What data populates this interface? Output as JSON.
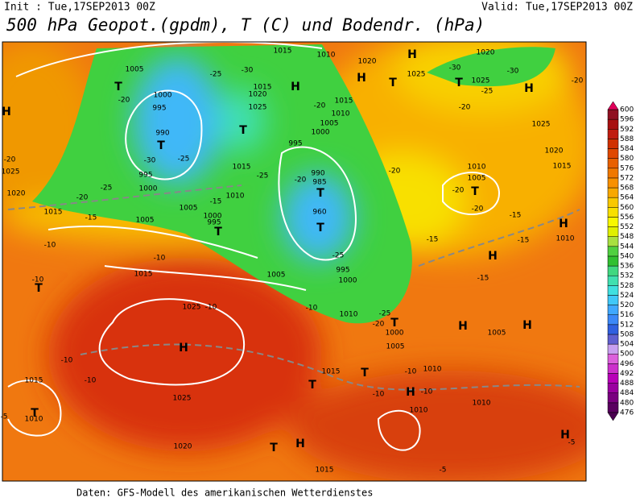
{
  "header": {
    "init": "Init : Tue,17SEP2013 00Z",
    "valid": "Valid: Tue,17SEP2013 00Z",
    "title": "500 hPa Geopot.(gpdm), T (C) und Bodendr. (hPa)"
  },
  "footer": "Daten: GFS-Modell des amerikanischen Wetterdienstes",
  "colorbar": {
    "levels": [
      476,
      480,
      484,
      488,
      492,
      496,
      500,
      504,
      508,
      512,
      516,
      520,
      524,
      528,
      532,
      536,
      540,
      544,
      548,
      552,
      556,
      560,
      564,
      568,
      572,
      576,
      580,
      584,
      588,
      592,
      596,
      600
    ],
    "colors": [
      "#5a0060",
      "#7a0080",
      "#9a00a0",
      "#b800b8",
      "#cc30cc",
      "#dc60dc",
      "#c8a0f0",
      "#6060d0",
      "#3060e0",
      "#3c88f8",
      "#40a8ff",
      "#40c8f8",
      "#40e0e0",
      "#40e0b0",
      "#40d880",
      "#30c030",
      "#50d040",
      "#a8e040",
      "#e0f000",
      "#f8f800",
      "#f8e000",
      "#f8c800",
      "#f8a800",
      "#f89000",
      "#f07800",
      "#e86000",
      "#e04800",
      "#d03000",
      "#c01c10",
      "#a81010",
      "#901020"
    ]
  },
  "map": {
    "labels": [
      "H",
      "H",
      "H",
      "H",
      "H",
      "H",
      "H",
      "H",
      "H",
      "H",
      "H",
      "H",
      "H",
      "T",
      "T",
      "T",
      "T",
      "T",
      "T",
      "T",
      "T",
      "T",
      "T",
      "T",
      "T",
      "T",
      "T",
      "T",
      "1000",
      "995",
      "990",
      "995",
      "1000",
      "1005",
      "1015",
      "1010",
      "1020",
      "1025",
      "1025",
      "1020",
      "1015",
      "1010",
      "1005",
      "1000",
      "995",
      "990",
      "985",
      "960",
      "995",
      "1000",
      "1005",
      "1010",
      "1000",
      "1005",
      "1010",
      "1015",
      "1025",
      "1025",
      "1020",
      "1015",
      "1005",
      "1005",
      "1000",
      "995",
      "1010",
      "1015",
      "1025",
      "1020",
      "1015",
      "1020",
      "1025",
      "1015",
      "1015",
      "1010",
      "1015",
      "1010",
      "1010",
      "1005",
      "1010",
      "1015",
      "1020",
      "1025",
      "1010",
      "1005",
      "-25",
      "-30",
      "-20",
      "-25",
      "-30",
      "-25",
      "-20",
      "-15",
      "-10",
      "-10",
      "-10",
      "-10",
      "-15",
      "-25",
      "-20",
      "-25",
      "-20",
      "-20",
      "-20",
      "-20",
      "-15",
      "-15",
      "-15",
      "-15",
      "-20",
      "-25",
      "-30",
      "-30",
      "-10",
      "-20",
      "-25",
      "-10",
      "-10",
      "-10",
      "-10",
      "-10",
      "-5",
      "-5",
      "-5",
      "-20",
      "-20"
    ]
  }
}
